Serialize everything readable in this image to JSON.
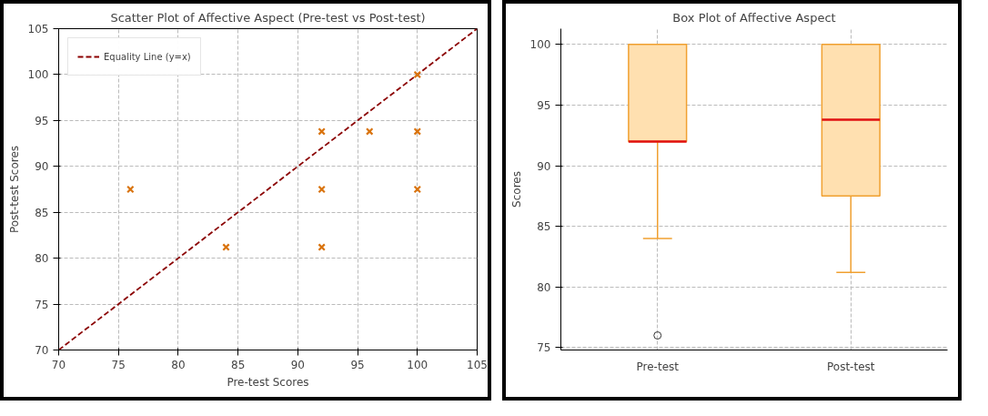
{
  "chart_data": [
    {
      "type": "scatter",
      "title": "Scatter Plot of Affective Aspect (Pre-test vs Post-test)",
      "xlabel": "Pre-test Scores",
      "ylabel": "Post-test Scores",
      "xlim": [
        70,
        105
      ],
      "ylim": [
        70,
        105
      ],
      "xticks": [
        70,
        75,
        80,
        85,
        90,
        95,
        100,
        105
      ],
      "yticks": [
        70,
        75,
        80,
        85,
        90,
        95,
        100,
        105
      ],
      "grid": true,
      "legend": "top left",
      "series": [
        {
          "color": "#d9730d",
          "marker": "cross",
          "x": [
            76,
            84,
            92,
            92,
            92,
            96,
            100,
            100,
            100
          ],
          "values": [
            87.5,
            81.2,
            93.8,
            87.5,
            81.2,
            93.8,
            100,
            93.8,
            87.5
          ]
        },
        {
          "type": "line",
          "name": "Equality Line (y=x)",
          "color": "#8b0000",
          "line_style": "dashed",
          "marker": "none",
          "x": [
            70,
            105
          ],
          "values": [
            70,
            105
          ]
        }
      ]
    },
    {
      "type": "box",
      "title": "Box Plot of Affective Aspect",
      "ylabel": "Scores",
      "categories": [
        "Pre-test",
        "Post-test"
      ],
      "ylim": [
        74.8,
        101.3
      ],
      "yticks": [
        75,
        80,
        85,
        90,
        95,
        100
      ],
      "grid": true,
      "color": "#ffe0b0",
      "boxes": [
        {
          "low": 84,
          "q1": 92,
          "median": 92,
          "q3": 100,
          "high": 100,
          "outliers": [
            76
          ]
        },
        {
          "low": 81.2,
          "q1": 87.5,
          "median": 93.8,
          "q3": 100,
          "high": 100
        }
      ]
    }
  ]
}
